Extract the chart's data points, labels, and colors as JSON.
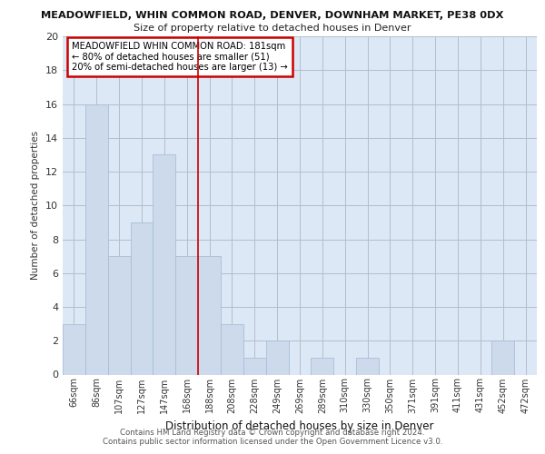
{
  "title_line1": "MEADOWFIELD, WHIN COMMON ROAD, DENVER, DOWNHAM MARKET, PE38 0DX",
  "title_line2": "Size of property relative to detached houses in Denver",
  "xlabel": "Distribution of detached houses by size in Denver",
  "ylabel": "Number of detached properties",
  "categories": [
    "66sqm",
    "86sqm",
    "107sqm",
    "127sqm",
    "147sqm",
    "168sqm",
    "188sqm",
    "208sqm",
    "228sqm",
    "249sqm",
    "269sqm",
    "289sqm",
    "310sqm",
    "330sqm",
    "350sqm",
    "371sqm",
    "391sqm",
    "411sqm",
    "431sqm",
    "452sqm",
    "472sqm"
  ],
  "values": [
    3,
    16,
    7,
    9,
    13,
    7,
    7,
    3,
    1,
    2,
    0,
    1,
    0,
    1,
    0,
    0,
    0,
    0,
    0,
    2,
    0
  ],
  "bar_color": "#ccdaeb",
  "bar_edgecolor": "#a8bfd8",
  "vline_x": 6,
  "vline_color": "#cc0000",
  "annotation_text": "MEADOWFIELD WHIN COMMON ROAD: 181sqm\n← 80% of detached houses are smaller (51)\n20% of semi-detached houses are larger (13) →",
  "annotation_box_color": "#ffffff",
  "annotation_box_edgecolor": "#cc0000",
  "ylim": [
    0,
    20
  ],
  "yticks": [
    0,
    2,
    4,
    6,
    8,
    10,
    12,
    14,
    16,
    18,
    20
  ],
  "footer_line1": "Contains HM Land Registry data © Crown copyright and database right 2024.",
  "footer_line2": "Contains public sector information licensed under the Open Government Licence v3.0.",
  "plot_bg_color": "#dce8f5"
}
